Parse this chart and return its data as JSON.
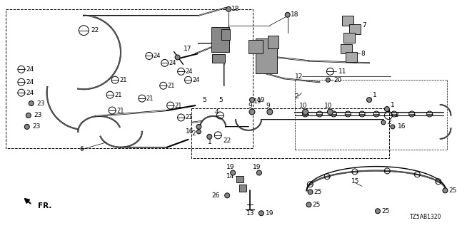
{
  "bg_color": "#ffffff",
  "diagram_code": "TZ5AB1320",
  "fig_w": 6.4,
  "fig_h": 3.2,
  "dpi": 100
}
